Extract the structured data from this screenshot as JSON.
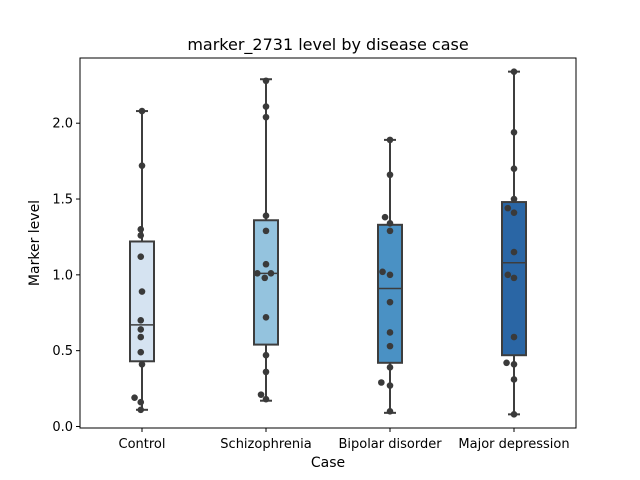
{
  "chart_data": {
    "type": "box",
    "title": "marker_2731 level by disease case",
    "xlabel": "Case",
    "ylabel": "Marker level",
    "ylim": [
      -0.01,
      2.43
    ],
    "yticks": [
      0.0,
      0.5,
      1.0,
      1.5,
      2.0
    ],
    "ytick_labels": [
      "0.0",
      "0.5",
      "1.0",
      "1.5",
      "2.0"
    ],
    "grid": false,
    "categories": [
      "Control",
      "Schizophrenia",
      "Bipolar disorder",
      "Major depression"
    ],
    "colors": [
      "#d5e3f1",
      "#94c3de",
      "#4a91c4",
      "#2a66a5"
    ],
    "boxes": [
      {
        "q1": 0.43,
        "median": 0.67,
        "q3": 1.22,
        "whisker_low": 0.11,
        "whisker_high": 2.08
      },
      {
        "q1": 0.54,
        "median": 1.01,
        "q3": 1.36,
        "whisker_low": 0.17,
        "whisker_high": 2.29
      },
      {
        "q1": 0.42,
        "median": 0.91,
        "q3": 1.33,
        "whisker_low": 0.09,
        "whisker_high": 1.89
      },
      {
        "q1": 0.47,
        "median": 1.08,
        "q3": 1.48,
        "whisker_low": 0.08,
        "whisker_high": 2.34
      }
    ],
    "points": [
      [
        {
          "x": 0.0,
          "y": 2.08
        },
        {
          "x": 0.0,
          "y": 1.72
        },
        {
          "x": -0.01,
          "y": 1.3
        },
        {
          "x": -0.01,
          "y": 1.26
        },
        {
          "x": -0.01,
          "y": 1.12
        },
        {
          "x": 0.0,
          "y": 0.89
        },
        {
          "x": -0.01,
          "y": 0.7
        },
        {
          "x": -0.01,
          "y": 0.64
        },
        {
          "x": -0.01,
          "y": 0.59
        },
        {
          "x": -0.01,
          "y": 0.49
        },
        {
          "x": 0.0,
          "y": 0.41
        },
        {
          "x": -0.06,
          "y": 0.19
        },
        {
          "x": -0.01,
          "y": 0.16
        },
        {
          "x": -0.01,
          "y": 0.11
        }
      ],
      [
        {
          "x": 0.0,
          "y": 2.28
        },
        {
          "x": 0.0,
          "y": 2.11
        },
        {
          "x": 0.0,
          "y": 2.04
        },
        {
          "x": 0.0,
          "y": 1.39
        },
        {
          "x": 0.0,
          "y": 1.29
        },
        {
          "x": 0.0,
          "y": 1.07
        },
        {
          "x": -0.07,
          "y": 1.01
        },
        {
          "x": 0.04,
          "y": 1.01
        },
        {
          "x": -0.01,
          "y": 0.98
        },
        {
          "x": 0.0,
          "y": 0.72
        },
        {
          "x": 0.0,
          "y": 0.47
        },
        {
          "x": 0.0,
          "y": 0.36
        },
        {
          "x": -0.04,
          "y": 0.21
        },
        {
          "x": 0.0,
          "y": 0.18
        }
      ],
      [
        {
          "x": 0.0,
          "y": 1.89
        },
        {
          "x": 0.0,
          "y": 1.66
        },
        {
          "x": -0.04,
          "y": 1.38
        },
        {
          "x": 0.0,
          "y": 1.34
        },
        {
          "x": 0.0,
          "y": 1.29
        },
        {
          "x": -0.06,
          "y": 1.02
        },
        {
          "x": 0.0,
          "y": 1.0
        },
        {
          "x": 0.0,
          "y": 0.82
        },
        {
          "x": 0.0,
          "y": 0.62
        },
        {
          "x": 0.0,
          "y": 0.53
        },
        {
          "x": 0.0,
          "y": 0.39
        },
        {
          "x": -0.07,
          "y": 0.29
        },
        {
          "x": 0.0,
          "y": 0.27
        },
        {
          "x": 0.0,
          "y": 0.1
        }
      ],
      [
        {
          "x": 0.0,
          "y": 2.34
        },
        {
          "x": 0.0,
          "y": 1.94
        },
        {
          "x": 0.0,
          "y": 1.7
        },
        {
          "x": 0.0,
          "y": 1.5
        },
        {
          "x": -0.05,
          "y": 1.44
        },
        {
          "x": 0.0,
          "y": 1.41
        },
        {
          "x": 0.0,
          "y": 1.15
        },
        {
          "x": -0.05,
          "y": 1.0
        },
        {
          "x": 0.0,
          "y": 0.98
        },
        {
          "x": 0.0,
          "y": 0.59
        },
        {
          "x": -0.06,
          "y": 0.42
        },
        {
          "x": 0.0,
          "y": 0.41
        },
        {
          "x": 0.0,
          "y": 0.31
        },
        {
          "x": 0.0,
          "y": 0.08
        }
      ]
    ]
  }
}
